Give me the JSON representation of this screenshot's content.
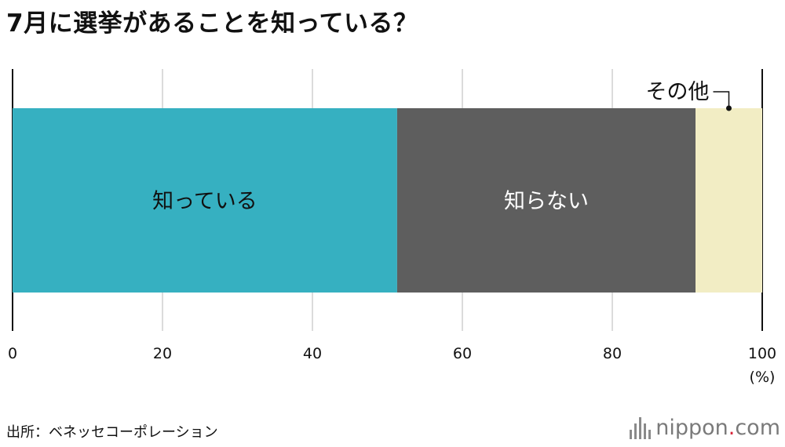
{
  "chart_data": {
    "type": "bar",
    "orientation": "horizontal",
    "stacked": true,
    "title": "7月に選挙があることを知っている？",
    "xlim": [
      0,
      100
    ],
    "xticks": [
      "0",
      "20",
      "40",
      "60",
      "80",
      "100"
    ],
    "xunit": "(%)",
    "grid": true,
    "series": [
      {
        "name": "知っている",
        "value": 51.3,
        "color": "#36b0c1",
        "label_color": "#111111"
      },
      {
        "name": "知らない",
        "value": 39.8,
        "color": "#5e5e5e",
        "label_color": "#ffffff"
      },
      {
        "name": "その他",
        "value": 8.9,
        "color": "#f2edc4",
        "label_color": "#111111"
      }
    ]
  },
  "source": "出所：ベネッセコーポレーション",
  "logo": {
    "name": "nippon",
    "dot": ".",
    "suffix": "com"
  }
}
